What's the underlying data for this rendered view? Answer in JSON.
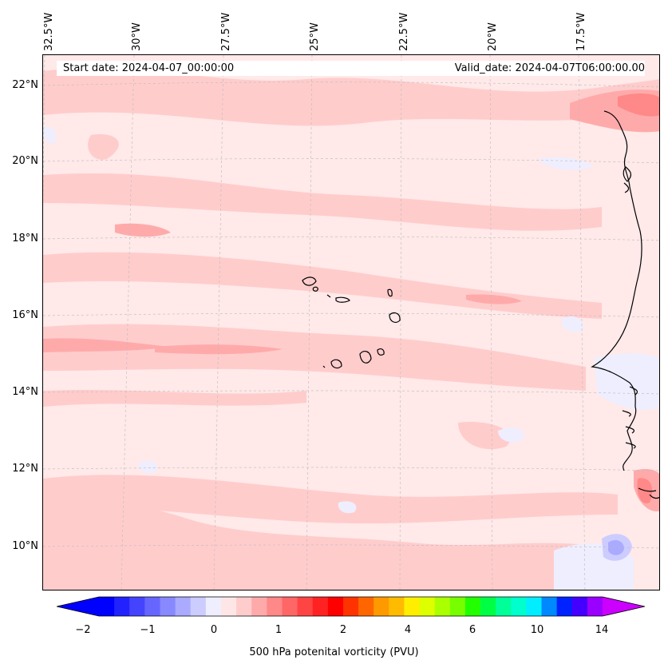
{
  "banner": {
    "start_date": "Start date: 2024-04-07_00:00:00",
    "valid_date": "Valid_date: 2024-04-07T06:00:00.00"
  },
  "lon_labels": [
    "32.5°W",
    "30°W",
    "27.5°W",
    "25°W",
    "22.5°W",
    "20°W",
    "17.5°W"
  ],
  "lat_labels": [
    "22°N",
    "20°N",
    "18°N",
    "16°N",
    "14°N",
    "12°N",
    "10°N"
  ],
  "colorbar": {
    "title": "500 hPa potenital vorticity (PVU)",
    "tick_labels": [
      "−2",
      "−1",
      "0",
      "1",
      "2",
      "4",
      "6",
      "10",
      "14"
    ],
    "colors": [
      "#0000ff",
      "#2222ff",
      "#4444ff",
      "#6666ff",
      "#8888ff",
      "#aaaaff",
      "#ccccff",
      "#eeeeff",
      "#ffe6e6",
      "#ffcccc",
      "#ffaaaa",
      "#ff8888",
      "#ff6666",
      "#ff4444",
      "#ff2222",
      "#ff0000",
      "#ff3300",
      "#ff6600",
      "#ff9900",
      "#ffbb00",
      "#ffee00",
      "#ddff00",
      "#aaff00",
      "#77ff00",
      "#22ff00",
      "#00ff44",
      "#00ff99",
      "#00ffcc",
      "#00eeff",
      "#0088ff",
      "#0022ff",
      "#4400ff",
      "#9900ff"
    ],
    "over_color": "#cc00ff",
    "under_color": "#0000ff"
  }
}
